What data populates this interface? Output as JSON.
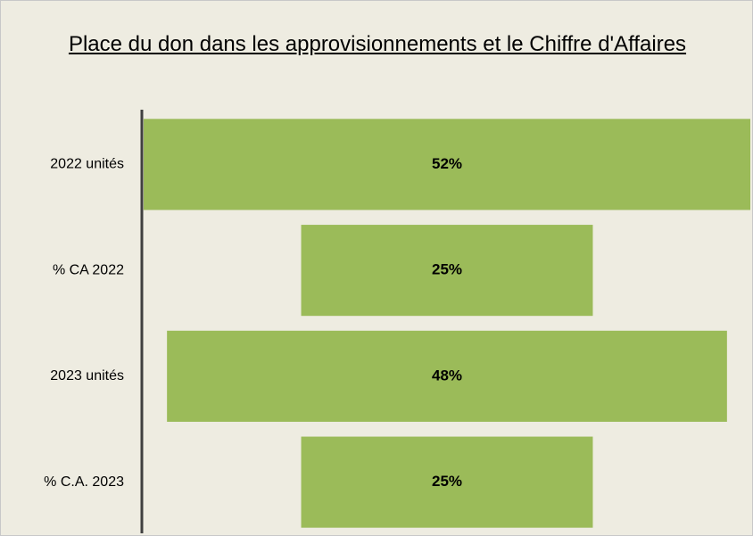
{
  "chart_data": {
    "type": "funnel",
    "title": "Place du don dans les approvisionnements et le Chiffre d'Affaires",
    "categories": [
      "2022 unités",
      "%  CA 2022",
      "2023 unités",
      "% C.A. 2023"
    ],
    "values": [
      52,
      25,
      48,
      25
    ],
    "value_labels": [
      "52%",
      "25%",
      "48%",
      "25%"
    ],
    "color": "#9bbb59"
  }
}
